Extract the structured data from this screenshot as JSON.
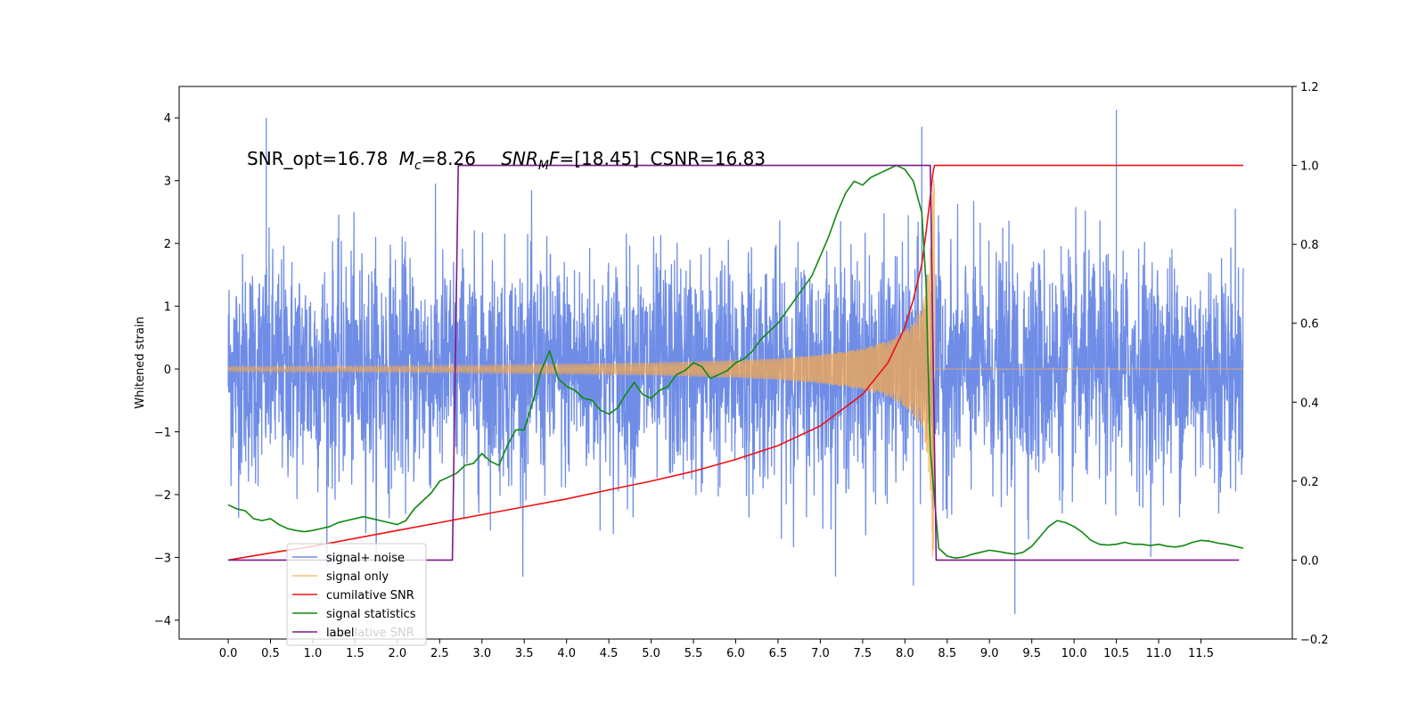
{
  "chart_data": {
    "type": "line",
    "title": "",
    "annotation": {
      "snr_opt": "SNR_opt=16.78",
      "mc_symbol": "M",
      "mc_sub": "c",
      "mc_value": "=8.26",
      "snrmf_symbol": "SNR",
      "snrmf_sub": "M",
      "snrmf_tail": "F",
      "snrmf_value": "=[18.45]",
      "csnr": "CSNR=16.83"
    },
    "xlabel": "",
    "ylabel": "Whitened strain",
    "xlim": [
      -0.58,
      12.58
    ],
    "ylim_left": [
      -4.3,
      4.5
    ],
    "ylim_right": [
      -0.2,
      1.2
    ],
    "x_ticks": [
      0,
      0.5,
      1,
      1.5,
      2,
      2.5,
      3,
      3.5,
      4,
      4.5,
      5,
      5.5,
      6,
      6.5,
      7,
      7.5,
      8,
      8.5,
      9,
      9.5,
      10,
      10.5,
      11,
      11.5
    ],
    "x_tick_labels": [
      "0.0",
      "0.5",
      "1.0",
      "1.5",
      "2.0",
      "2.5",
      "3.0",
      "3.5",
      "4.0",
      "4.5",
      "5.0",
      "5.5",
      "6.0",
      "6.5",
      "7.0",
      "7.5",
      "8.0",
      "8.5",
      "9.0",
      "9.5",
      "10.0",
      "10.5",
      "11.0",
      "11.5"
    ],
    "y_left_ticks": [
      -4,
      -3,
      -2,
      -1,
      0,
      1,
      2,
      3,
      4
    ],
    "y_left_tick_labels": [
      "−4",
      "−3",
      "−2",
      "−1",
      "0",
      "1",
      "2",
      "3",
      "4"
    ],
    "y_right_ticks": [
      -0.2,
      0,
      0.2,
      0.4,
      0.6,
      0.8,
      1.0,
      1.2
    ],
    "y_right_tick_labels": [
      "−0.2",
      "0.0",
      "0.2",
      "0.4",
      "0.6",
      "0.8",
      "1.0",
      "1.2"
    ],
    "grid": false,
    "legend_position": "bottom-left",
    "series": [
      {
        "name": "signal+ noise",
        "axis": "left",
        "color": "#6f8de6",
        "description_values": {
          "x_range": [
            0.0,
            12.0
          ],
          "noise_std": 0.9,
          "max": 4.13,
          "min": -3.9,
          "notable_peaks": [
            [
              0.45,
              4.0
            ],
            [
              8.2,
              3.86
            ],
            [
              10.5,
              4.13
            ],
            [
              9.3,
              -3.9
            ],
            [
              8.1,
              -3.45
            ]
          ]
        }
      },
      {
        "name": "signal only",
        "axis": "left",
        "color": "#f5a94f",
        "envelope": {
          "x": [
            0.0,
            1.0,
            2.0,
            3.0,
            4.0,
            5.0,
            6.0,
            6.5,
            7.0,
            7.5,
            7.8,
            8.0,
            8.1,
            8.2,
            8.25,
            8.3,
            8.33
          ],
          "amplitude": [
            0.04,
            0.045,
            0.05,
            0.06,
            0.08,
            0.1,
            0.14,
            0.17,
            0.23,
            0.33,
            0.45,
            0.6,
            0.75,
            1.0,
            1.3,
            1.9,
            3.2
          ]
        },
        "x_end": 8.35
      },
      {
        "name": "cumilative SNR",
        "axis": "right",
        "color": "#ee1111",
        "x": [
          0.0,
          0.5,
          1.0,
          1.5,
          2.0,
          2.5,
          3.0,
          3.5,
          4.0,
          4.5,
          5.0,
          5.5,
          6.0,
          6.5,
          7.0,
          7.5,
          7.8,
          8.0,
          8.1,
          8.2,
          8.25,
          8.3,
          8.33,
          8.35,
          12.0
        ],
        "y": [
          0.0,
          0.018,
          0.035,
          0.055,
          0.075,
          0.095,
          0.115,
          0.135,
          0.155,
          0.178,
          0.2,
          0.225,
          0.255,
          0.29,
          0.34,
          0.42,
          0.5,
          0.59,
          0.66,
          0.75,
          0.83,
          0.92,
          0.98,
          1.0,
          1.0
        ]
      },
      {
        "name": "signal statistics",
        "axis": "right",
        "color": "#118811",
        "x": [
          0.0,
          0.1,
          0.2,
          0.3,
          0.4,
          0.5,
          0.6,
          0.7,
          0.8,
          0.9,
          1.0,
          1.1,
          1.2,
          1.3,
          1.4,
          1.5,
          1.6,
          1.7,
          1.8,
          1.9,
          2.0,
          2.1,
          2.2,
          2.3,
          2.4,
          2.5,
          2.6,
          2.7,
          2.8,
          2.9,
          3.0,
          3.1,
          3.2,
          3.3,
          3.4,
          3.5,
          3.6,
          3.7,
          3.8,
          3.9,
          4.0,
          4.1,
          4.2,
          4.3,
          4.4,
          4.5,
          4.6,
          4.7,
          4.8,
          4.9,
          5.0,
          5.1,
          5.2,
          5.3,
          5.4,
          5.5,
          5.6,
          5.7,
          5.8,
          5.9,
          6.0,
          6.1,
          6.2,
          6.3,
          6.4,
          6.5,
          6.6,
          6.7,
          6.8,
          6.9,
          7.0,
          7.1,
          7.2,
          7.3,
          7.4,
          7.5,
          7.6,
          7.7,
          7.8,
          7.9,
          8.0,
          8.1,
          8.2,
          8.25,
          8.3,
          8.4,
          8.5,
          8.6,
          8.7,
          8.8,
          8.9,
          9.0,
          9.1,
          9.2,
          9.3,
          9.4,
          9.5,
          9.6,
          9.7,
          9.8,
          9.9,
          10.0,
          10.1,
          10.2,
          10.3,
          10.4,
          10.5,
          10.6,
          10.7,
          10.8,
          10.9,
          11.0,
          11.1,
          11.2,
          11.3,
          11.4,
          11.5,
          11.6,
          11.7,
          11.8,
          11.9,
          12.0
        ],
        "y": [
          0.14,
          0.13,
          0.125,
          0.105,
          0.1,
          0.105,
          0.09,
          0.08,
          0.075,
          0.072,
          0.075,
          0.08,
          0.085,
          0.095,
          0.1,
          0.105,
          0.11,
          0.105,
          0.1,
          0.095,
          0.09,
          0.1,
          0.13,
          0.15,
          0.17,
          0.2,
          0.21,
          0.22,
          0.24,
          0.245,
          0.27,
          0.25,
          0.24,
          0.29,
          0.33,
          0.33,
          0.4,
          0.48,
          0.53,
          0.46,
          0.44,
          0.43,
          0.41,
          0.405,
          0.38,
          0.37,
          0.385,
          0.42,
          0.45,
          0.42,
          0.41,
          0.43,
          0.44,
          0.47,
          0.48,
          0.5,
          0.49,
          0.46,
          0.47,
          0.48,
          0.5,
          0.51,
          0.53,
          0.56,
          0.58,
          0.6,
          0.63,
          0.66,
          0.69,
          0.72,
          0.77,
          0.82,
          0.88,
          0.93,
          0.96,
          0.95,
          0.97,
          0.98,
          0.99,
          1.0,
          0.99,
          0.96,
          0.88,
          0.7,
          0.28,
          0.03,
          0.01,
          0.005,
          0.008,
          0.015,
          0.02,
          0.025,
          0.022,
          0.018,
          0.015,
          0.02,
          0.035,
          0.06,
          0.085,
          0.1,
          0.095,
          0.085,
          0.07,
          0.05,
          0.04,
          0.038,
          0.04,
          0.045,
          0.04,
          0.04,
          0.037,
          0.04,
          0.035,
          0.033,
          0.037,
          0.045,
          0.05,
          0.048,
          0.043,
          0.04,
          0.035,
          0.03
        ]
      },
      {
        "name": "label",
        "axis": "right",
        "color": "#7d1a8a",
        "x": [
          0.0,
          2.65,
          2.72,
          8.3,
          8.37,
          11.95
        ],
        "y": [
          0.0,
          0.0,
          1.0,
          1.0,
          0.0,
          0.0
        ]
      }
    ],
    "legend_hidden_entry": "cumilative SNR"
  }
}
